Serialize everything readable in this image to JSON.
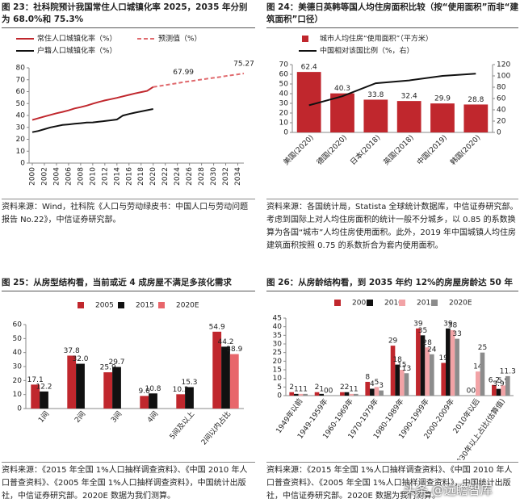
{
  "chart_data": [
    {
      "type": "line",
      "title": "图 23：社科院预计我国常住人口城镇化率 2025，2035 年分别为 68.0%和 75.3%",
      "source": "资料来源：Wind，社科院《人口与劳动绿皮书：中国人口与劳动问题报告 No.22》，中信证券研究部。",
      "x": [
        2000,
        2001,
        2002,
        2003,
        2004,
        2005,
        2006,
        2007,
        2008,
        2009,
        2010,
        2011,
        2012,
        2013,
        2014,
        2015,
        2016,
        2017,
        2018,
        2019,
        2020,
        2021,
        2022,
        2023,
        2024,
        2025,
        2026,
        2027,
        2028,
        2029,
        2030,
        2031,
        2032,
        2033,
        2034,
        2035
      ],
      "xlim": [
        2000,
        2035
      ],
      "xticks": [
        2000,
        2002,
        2004,
        2006,
        2008,
        2010,
        2012,
        2014,
        2016,
        2018,
        2020,
        2022,
        2024,
        2026,
        2028,
        2030,
        2032,
        2034
      ],
      "ylim": [
        0,
        80
      ],
      "yticks": [
        0,
        10,
        20,
        30,
        40,
        50,
        60,
        70,
        80
      ],
      "series": [
        {
          "name": "常住人口城镇化率（%）",
          "color": "#c0272d",
          "values": [
            36.2,
            37.7,
            39.1,
            40.5,
            41.8,
            43.0,
            44.3,
            45.9,
            47.0,
            48.3,
            49.9,
            51.3,
            52.6,
            53.7,
            54.8,
            56.1,
            57.3,
            58.5,
            59.6,
            60.6,
            63.9,
            null,
            null,
            null,
            null,
            null,
            null,
            null,
            null,
            null,
            null,
            null,
            null,
            null,
            null,
            null
          ]
        },
        {
          "name": "预测值（%）",
          "color": "#e06a6e",
          "dash": true,
          "values": [
            null,
            null,
            null,
            null,
            null,
            null,
            null,
            null,
            null,
            null,
            null,
            null,
            null,
            null,
            null,
            null,
            null,
            null,
            null,
            null,
            63.9,
            64.7,
            65.5,
            66.3,
            67.1,
            67.99,
            68.7,
            69.4,
            70.2,
            70.9,
            71.6,
            72.3,
            73.1,
            73.8,
            74.5,
            75.27
          ],
          "value_labels": [
            null,
            null,
            null,
            null,
            null,
            null,
            null,
            null,
            null,
            null,
            null,
            null,
            null,
            null,
            null,
            null,
            null,
            null,
            null,
            null,
            null,
            null,
            null,
            null,
            null,
            "67.99",
            null,
            null,
            null,
            null,
            null,
            null,
            null,
            null,
            null,
            "75.27"
          ]
        },
        {
          "name": "户籍人口城镇化率（%）",
          "color": "#111111",
          "values": [
            26,
            27,
            28.5,
            30,
            31,
            32,
            32.5,
            33,
            33.5,
            34,
            34.2,
            34.7,
            35.3,
            35.9,
            36.6,
            39.9,
            41.2,
            42.4,
            43.4,
            44.4,
            45.4,
            null,
            null,
            null,
            null,
            null,
            null,
            null,
            null,
            null,
            null,
            null,
            null,
            null,
            null,
            null
          ]
        }
      ]
    },
    {
      "type": "bar",
      "title": "图 24：美德日英韩等国人均住房面积比较（按“使用面积”而非“建筑面积”口径）",
      "source": "资料来源：各国统计局，Statista 全球统计数据库，中信证券研究部。考虑到国际上对人均住房面积的统计一般不分城乡，以 0.85 的系数换算为各国“城市”人均住房使用面积。此外，2019 年中国城镇人均住房建筑面积按照 0.75 的系数折合为套内使用面积。",
      "categories": [
        "美国(2020)",
        "德国(2020)",
        "日本(2018)",
        "英国(2018)",
        "中国(2019)",
        "韩国(2020)"
      ],
      "ylim": [
        0,
        70
      ],
      "yticks": [
        0,
        10,
        20,
        30,
        40,
        50,
        60,
        70
      ],
      "y2lim": [
        0,
        120
      ],
      "y2ticks": [
        0,
        20,
        40,
        60,
        80,
        100,
        120
      ],
      "series": [
        {
          "name": "城市人均住房“使用面积”（平方米）",
          "color": "#c0272d",
          "values": [
            62.4,
            40.3,
            33.8,
            32.4,
            29.9,
            28.8
          ]
        },
        {
          "name": "中国相对该国比例（%，右）",
          "color": "#111111",
          "type": "line",
          "axis": "y2",
          "values": [
            48,
            64,
            87,
            92,
            100,
            104
          ]
        }
      ]
    },
    {
      "type": "bar",
      "title": "图 25：从房型结构看，当前或近 4 成房屋不满足多孩化需求",
      "source": "资料来源：《2015 年全国 1%人口抽样调查资料》、《中国 2010 年人口普查资料》、《2005 年全国 1%人口抽样调查资料》，中国统计出版社，中信证券研究部。2020E 数据为我们测算。",
      "categories": [
        "1间",
        "2间",
        "3间",
        "4间",
        "5间及以上",
        "2间以内占比"
      ],
      "ylim": [
        0,
        60
      ],
      "yticks": [
        0,
        10,
        20,
        30,
        40,
        50,
        60
      ],
      "series": [
        {
          "name": "2005",
          "color": "#c0272d",
          "values": [
            17.1,
            37.8,
            25.9,
            9.0,
            10.2,
            54.9
          ],
          "value_labels": [
            "17.1",
            "37.8",
            "25.9",
            "9.0",
            "10.2",
            "54.9"
          ]
        },
        {
          "name": "2015",
          "color": "#111111",
          "values": [
            12.2,
            32.0,
            29.7,
            10.8,
            15.3,
            44.2
          ],
          "value_labels": [
            "12.2",
            "32.0",
            "29.7",
            "10.8",
            "15.3",
            "44.2"
          ]
        },
        {
          "name": "2020E",
          "color": "#e8666b",
          "values": [
            null,
            null,
            null,
            null,
            null,
            38.9
          ],
          "value_labels": [
            null,
            null,
            null,
            null,
            null,
            "38.9"
          ]
        }
      ]
    },
    {
      "type": "bar",
      "title": "图 26：从房龄结构看，到 2035 年约 12%的房屋房龄达 50 年",
      "source": "资料来源：《2015 年全国 1%人口抽样调查资料》、《中国 2010 年人口普查资料》、《2005 年全国 1%人口抽样调查资料》，中国统计出版社，中信证券研究部。2020E 数据为我们测算。",
      "categories": [
        "1949年以前",
        "1949-1959年",
        "1960-1969年",
        "1970-1979年",
        "1980-1989年",
        "1990-1999年",
        "2000-2009年",
        "2010年以后",
        "房龄30年以上占比(估算值)"
      ],
      "ylim": [
        0,
        45
      ],
      "yticks": [
        0,
        5,
        10,
        15,
        20,
        25,
        30,
        35,
        40,
        45
      ],
      "series": [
        {
          "name": "2005",
          "color": "#c0272d",
          "values": [
            2,
            2,
            2,
            8,
            29,
            39,
            19,
            0,
            6.2
          ]
        },
        {
          "name": "2010",
          "color": "#111111",
          "values": [
            1,
            1,
            2,
            4,
            18,
            35,
            39,
            0,
            3.9
          ]
        },
        {
          "name": "2015",
          "color": "#f2a3a6",
          "values": [
            1,
            0,
            1,
            5,
            15,
            28,
            38,
            14,
            5.9
          ]
        },
        {
          "name": "2020E",
          "color": "#8c8c8c",
          "values": [
            1,
            0,
            1,
            3,
            13,
            24,
            33,
            25,
            11.3
          ]
        }
      ]
    }
  ],
  "watermark": "头条 @远瞻智库"
}
